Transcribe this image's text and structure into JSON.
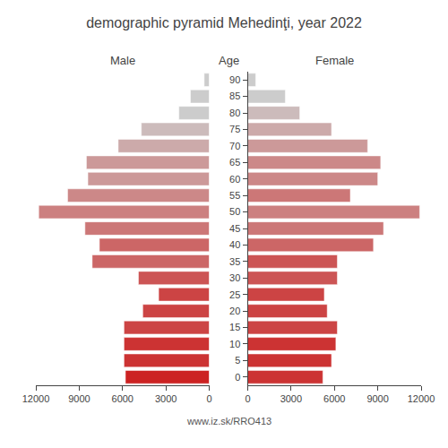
{
  "chart_data": {
    "type": "bar",
    "orientation": "horizontal",
    "title": "demographic pyramid Mehedinţi, year 2022",
    "ylabel": "Age",
    "annotations": [
      "www.iz.sk/RRO413"
    ],
    "categories": [
      "0",
      "5",
      "10",
      "15",
      "20",
      "25",
      "30",
      "35",
      "40",
      "45",
      "50",
      "55",
      "60",
      "65",
      "70",
      "75",
      "80",
      "85",
      "90"
    ],
    "series": [
      {
        "name": "Male",
        "values": [
          5800,
          5900,
          5900,
          5900,
          4600,
          3500,
          4900,
          8100,
          7600,
          8600,
          11800,
          9800,
          8400,
          8500,
          6300,
          4700,
          2100,
          1300,
          350
        ],
        "colors": [
          "#cc2222",
          "#cc3333",
          "#cc3333",
          "#cc4444",
          "#cc4444",
          "#cc4444",
          "#cc5555",
          "#cc6666",
          "#cc6666",
          "#cc7777",
          "#cc8080",
          "#cc8888",
          "#cc9999",
          "#cc9999",
          "#ccaaaa",
          "#ccbbbb",
          "#cccccc",
          "#cccccc",
          "#cccccc"
        ]
      },
      {
        "name": "Female",
        "values": [
          5200,
          5800,
          6100,
          6200,
          5500,
          5300,
          6200,
          6200,
          8700,
          9400,
          11900,
          7100,
          9000,
          9200,
          8300,
          5800,
          3600,
          2600,
          550
        ],
        "colors": [
          "#cc3333",
          "#cc3333",
          "#cc3333",
          "#cc4444",
          "#cc4444",
          "#cc4444",
          "#cc5555",
          "#cc5555",
          "#cc6666",
          "#cc7777",
          "#cc8080",
          "#cc7777",
          "#cc8888",
          "#cc8888",
          "#cc9999",
          "#ccaaaa",
          "#ccbbbb",
          "#cccccc",
          "#cccccc"
        ]
      }
    ],
    "xlim": [
      0,
      12000
    ],
    "xticks": [
      0,
      3000,
      6000,
      9000,
      12000
    ],
    "grid": false
  }
}
